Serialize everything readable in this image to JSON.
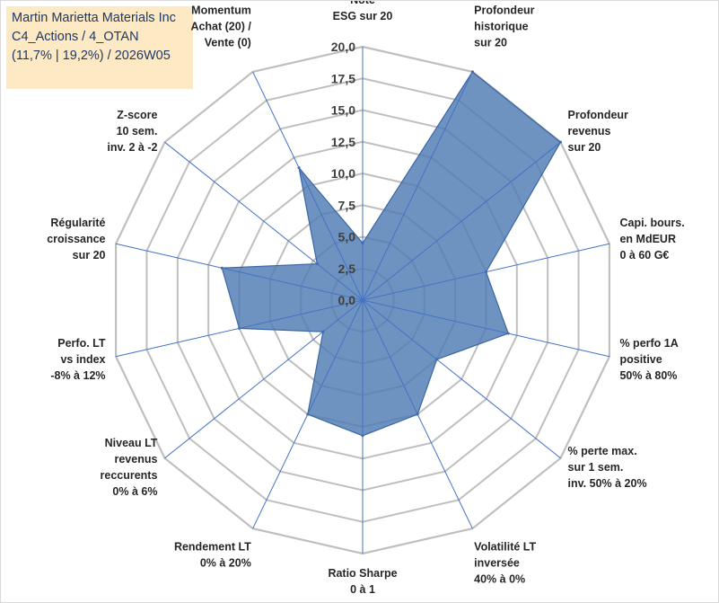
{
  "title": {
    "line1": "Martin Marietta Materials Inc",
    "line2": "C4_Actions / 4_OTAN",
    "line3": "(11,7% | 19,2%) / 2026W05"
  },
  "colors": {
    "fill": "#4f7bb3",
    "stroke": "#3b66a3",
    "grid": "#bfbfbf",
    "spoke": "#4472c4",
    "title_bg": "#fde9c4"
  },
  "chart_data": {
    "type": "radar",
    "title": "Martin Marietta Materials Inc",
    "axes": [
      {
        "label": [
          "Note",
          "ESG sur 20"
        ],
        "value": 4.5
      },
      {
        "label": [
          "Profondeur",
          "historique",
          "sur 20"
        ],
        "value": 20.0
      },
      {
        "label": [
          "Profondeur",
          "revenus",
          "sur 20"
        ],
        "value": 20.0
      },
      {
        "label": [
          "Capi. bours.",
          "en MdEUR",
          "0 à 60 G€"
        ],
        "value": 10.0
      },
      {
        "label": [
          "% perfo 1A",
          "positive",
          "50% à 80%"
        ],
        "value": 11.8
      },
      {
        "label": [
          "% perte max.",
          "sur 1 sem.",
          "inv. 50% à 20%"
        ],
        "value": 7.5
      },
      {
        "label": [
          "Volatilité LT",
          "inversée",
          "40% à 0%"
        ],
        "value": 10.0
      },
      {
        "label": [
          "Ratio Sharpe",
          "0 à 1"
        ],
        "value": 10.7
      },
      {
        "label": [
          "Rendement LT",
          "0% à 20%"
        ],
        "value": 10.0
      },
      {
        "label": [
          "Niveau LT",
          "revenus",
          "reccurents",
          "0% à 6%"
        ],
        "value": 4.0
      },
      {
        "label": [
          "Perfo. LT",
          "vs index",
          "-8% à 12%"
        ],
        "value": 10.0
      },
      {
        "label": [
          "Régularité",
          "croissance",
          "sur 20"
        ],
        "value": 11.4
      },
      {
        "label": [
          "Z-score",
          "10 sem.",
          "inv. 2 à -2"
        ],
        "value": 4.6
      },
      {
        "label": [
          "Momentum",
          "Achat (20) /",
          "Vente (0)"
        ],
        "value": 11.6
      }
    ],
    "r_min": 0,
    "r_max": 20,
    "ticks": [
      "0,0",
      "2,5",
      "5,0",
      "7,5",
      "10,0",
      "12,5",
      "15,0",
      "17,5",
      "20,0"
    ],
    "grid": true
  }
}
